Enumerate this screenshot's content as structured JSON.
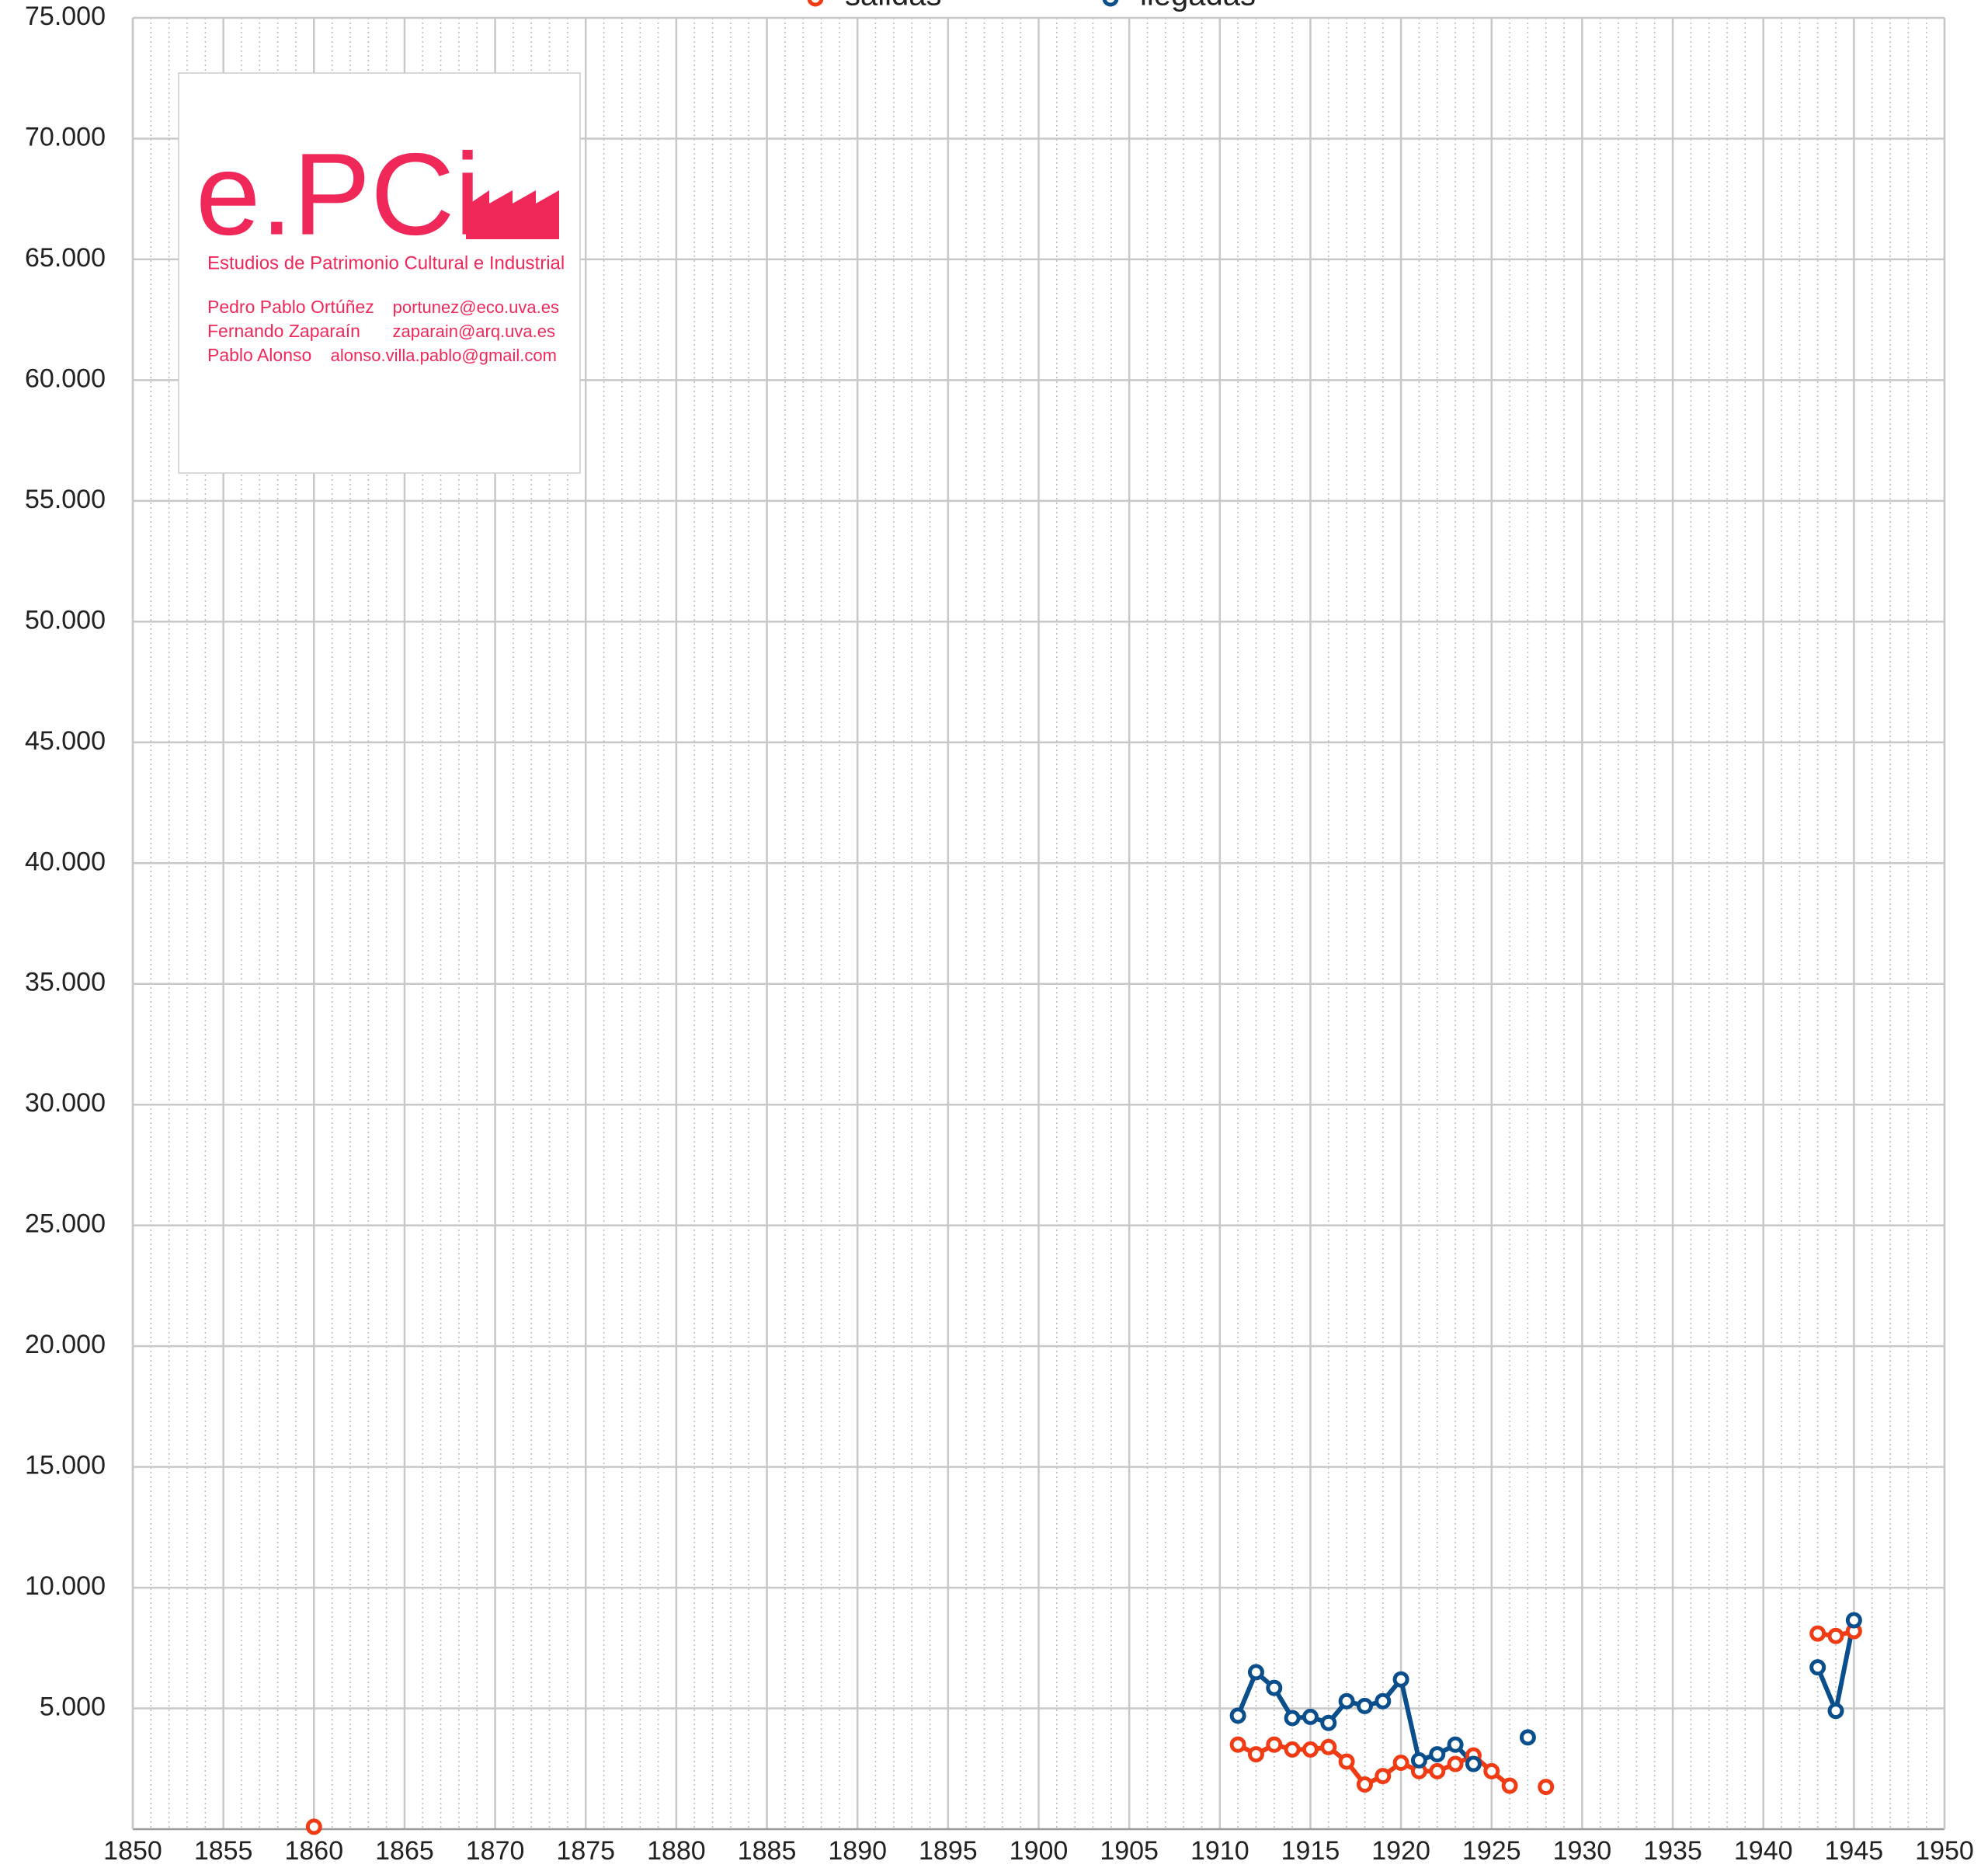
{
  "chart_data": {
    "type": "line",
    "x": [
      1860,
      1861,
      1910,
      1911,
      1912,
      1913,
      1914,
      1915,
      1916,
      1917,
      1918,
      1919,
      1920,
      1921,
      1922,
      1923,
      1924,
      1925,
      1926,
      1927,
      1928,
      1929,
      1930,
      1931,
      1932,
      1933,
      1934,
      1935,
      1936,
      1937,
      1938,
      1939,
      1940,
      1941,
      1942,
      1943,
      1944,
      1945
    ],
    "series": [
      {
        "name": "salidas",
        "color": "#f03c14",
        "values": [
          100,
          null,
          null,
          3500,
          3100,
          3500,
          3300,
          3300,
          3400,
          2800,
          1850,
          2200,
          2750,
          2400,
          2400,
          2700,
          3050,
          2400,
          1800,
          null,
          1750,
          null,
          null,
          null,
          null,
          null,
          null,
          null,
          null,
          null,
          null,
          null,
          null,
          null,
          null,
          8100,
          8000,
          8200
        ]
      },
      {
        "name": "llegadas",
        "color": "#0a4f8c",
        "values": [
          null,
          null,
          null,
          4700,
          6500,
          5850,
          4600,
          4650,
          4400,
          5300,
          5100,
          5300,
          6200,
          2850,
          3100,
          3500,
          2700,
          null,
          null,
          3800,
          null,
          null,
          null,
          null,
          null,
          null,
          null,
          null,
          null,
          null,
          null,
          null,
          null,
          null,
          null,
          6700,
          4900,
          8650
        ]
      }
    ],
    "xlim": [
      1850,
      1950
    ],
    "xticks": [
      1850,
      1855,
      1860,
      1865,
      1870,
      1875,
      1880,
      1885,
      1890,
      1895,
      1900,
      1905,
      1910,
      1915,
      1920,
      1925,
      1930,
      1935,
      1940,
      1945,
      1950
    ],
    "ylim": [
      0,
      75000
    ],
    "yticks": [
      {
        "value": 5000,
        "label": "5.000"
      },
      {
        "value": 10000,
        "label": "10.000"
      },
      {
        "value": 15000,
        "label": "15.000"
      },
      {
        "value": 20000,
        "label": "20.000"
      },
      {
        "value": 25000,
        "label": "25.000"
      },
      {
        "value": 30000,
        "label": "30.000"
      },
      {
        "value": 35000,
        "label": "35.000"
      },
      {
        "value": 40000,
        "label": "40.000"
      },
      {
        "value": 45000,
        "label": "45.000"
      },
      {
        "value": 50000,
        "label": "50.000"
      },
      {
        "value": 55000,
        "label": "55.000"
      },
      {
        "value": 60000,
        "label": "60.000"
      },
      {
        "value": 65000,
        "label": "65.000"
      },
      {
        "value": 70000,
        "label": "70.000"
      },
      {
        "value": 75000,
        "label": "75.000"
      }
    ],
    "grid": true,
    "legend": "top"
  },
  "logo": {
    "brand": "e.PCi",
    "subtitle": "Estudios de Patrimonio Cultural e Industrial",
    "contacts": [
      {
        "name": "Pedro Pablo Ortúñez",
        "email": "portunez@eco.uva.es"
      },
      {
        "name": "Fernando Zaparaín",
        "email": "zaparain@arq.uva.es"
      },
      {
        "name": "Pablo Alonso",
        "email": "alonso.villa.pablo@gmail.com"
      }
    ]
  }
}
